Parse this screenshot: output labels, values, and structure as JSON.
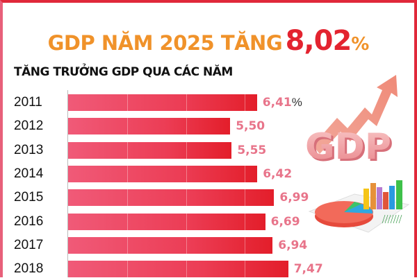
{
  "header": {
    "title_prefix": "GDP NĂM 2025 TĂNG",
    "title_value": "8,02",
    "title_unit": "%"
  },
  "subtitle": "TĂNG TRƯỞNG GDP QUA CÁC NĂM",
  "illustrations": {
    "gdp_text": "GDP",
    "gdp_icon": "gdp-arrow-up-icon",
    "chart_icon": "pie-bar-chart-icon"
  },
  "colors": {
    "title_orange": "#f0922a",
    "title_red": "#e3232f",
    "bar_start": "#f05a78",
    "bar_end": "#e31e2a",
    "value_pink": "#e8748a",
    "border_red": "#e0283a"
  },
  "chart_data": {
    "type": "bar",
    "orientation": "horizontal",
    "title": "GDP NĂM 2025 TĂNG 8,02%",
    "subtitle": "TĂNG TRƯỞNG GDP QUA CÁC NĂM",
    "xlabel": "",
    "ylabel": "",
    "unit": "%",
    "categories": [
      "2011",
      "2012",
      "2013",
      "2014",
      "2015",
      "2016",
      "2017",
      "2018"
    ],
    "values": [
      6.41,
      5.5,
      5.55,
      6.42,
      6.99,
      6.69,
      6.94,
      7.47
    ],
    "labels": [
      "6,41",
      "5,50",
      "5,55",
      "6,42",
      "6,99",
      "6,69",
      "6,94",
      "7,47"
    ],
    "first_label_unit": "%",
    "grid": true,
    "legend": "none"
  }
}
